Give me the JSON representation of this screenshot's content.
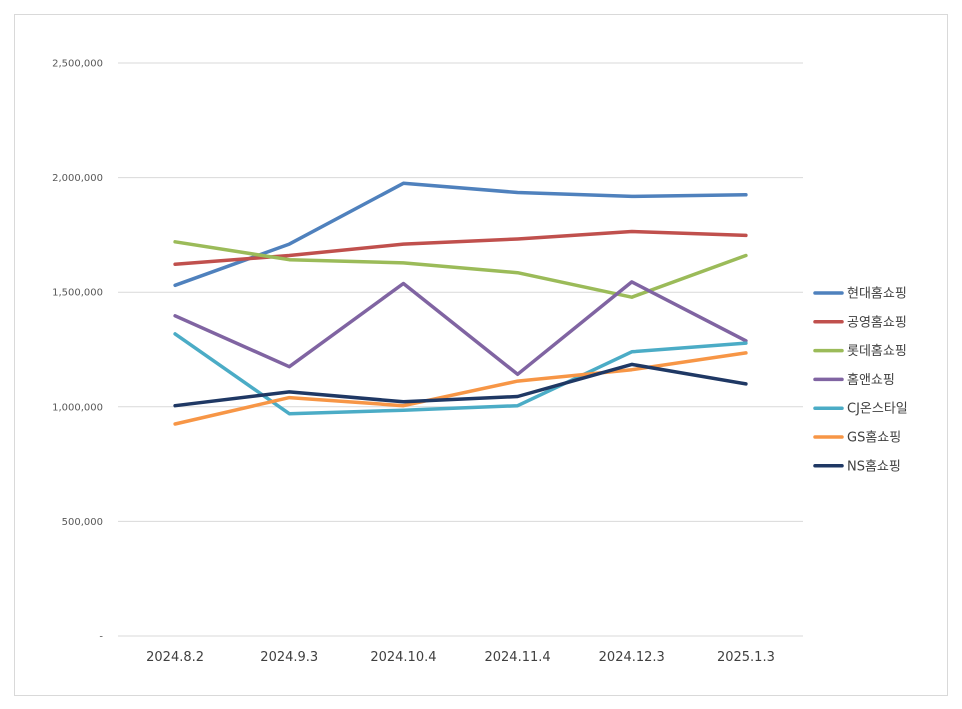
{
  "chart_data": {
    "type": "line",
    "title": "",
    "xlabel": "",
    "ylabel": "",
    "categories": [
      "2024.8.2",
      "2024.9.3",
      "2024.10.4",
      "2024.11.4",
      "2024.12.3",
      "2025.1.3"
    ],
    "ylim": [
      0,
      2500000
    ],
    "y_ticks": [
      0,
      500000,
      1000000,
      1500000,
      2000000,
      2500000
    ],
    "y_tick_labels": [
      "-",
      "500,000",
      "1,000,000",
      "1,500,000",
      "2,000,000",
      "2,500,000"
    ],
    "grid": true,
    "legend_position": "right",
    "series": [
      {
        "name": "현대홈쇼핑",
        "color": "#4f81bd",
        "values": [
          1530000,
          1710000,
          1975000,
          1935000,
          1918000,
          1925000
        ]
      },
      {
        "name": "공영홈쇼핑",
        "color": "#c0504d",
        "values": [
          1622000,
          1660000,
          1710000,
          1732000,
          1765000,
          1748000
        ]
      },
      {
        "name": "롯데홈쇼핑",
        "color": "#9bbb59",
        "values": [
          1720000,
          1642000,
          1628000,
          1585000,
          1478000,
          1660000
        ]
      },
      {
        "name": "홈앤쇼핑",
        "color": "#8064a2",
        "values": [
          1397000,
          1175000,
          1538000,
          1142000,
          1545000,
          1288000
        ]
      },
      {
        "name": "CJ온스타일",
        "color": "#4bacc6",
        "values": [
          1318000,
          970000,
          985000,
          1005000,
          1240000,
          1278000
        ]
      },
      {
        "name": "GS홈쇼핑",
        "color": "#f79646",
        "values": [
          925000,
          1040000,
          1005000,
          1112000,
          1162000,
          1235000
        ]
      },
      {
        "name": "NS홈쇼핑",
        "color": "#1f3864",
        "values": [
          1005000,
          1065000,
          1022000,
          1045000,
          1185000,
          1100000
        ]
      }
    ]
  }
}
